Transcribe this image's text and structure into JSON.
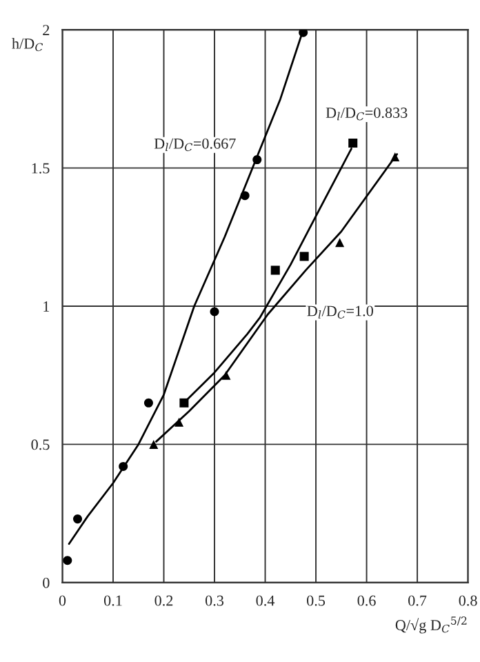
{
  "chart_data": {
    "type": "scatter",
    "xlabel": "Q/√g D$_{C}$$^{5/2}$",
    "ylabel": "h/D$_{C}$",
    "xlim": [
      0,
      0.8
    ],
    "ylim": [
      0,
      2
    ],
    "xticks": [
      0,
      0.1,
      0.2,
      0.3,
      0.4,
      0.5,
      0.6,
      0.7,
      0.8
    ],
    "yticks": [
      0,
      0.5,
      1,
      1.5,
      2
    ],
    "grid": true,
    "legend": false,
    "series": [
      {
        "marker": "circle",
        "color": "#000000",
        "x": [
          0.01,
          0.03,
          0.12,
          0.17,
          0.3,
          0.36,
          0.384,
          0.475
        ],
        "values": [
          0.08,
          0.23,
          0.42,
          0.65,
          0.98,
          1.4,
          1.53,
          1.99
        ]
      },
      {
        "marker": "square",
        "color": "#000000",
        "x": [
          0.24,
          0.42,
          0.477,
          0.573
        ],
        "values": [
          0.65,
          1.13,
          1.18,
          1.59
        ]
      },
      {
        "marker": "triangle",
        "color": "#000000",
        "x": [
          0.18,
          0.23,
          0.323,
          0.547,
          0.656
        ],
        "values": [
          0.5,
          0.58,
          0.75,
          1.23,
          1.54
        ]
      },
      {
        "type": "line",
        "name": "D$_{l}$/D$_{C}$=0.667",
        "color": "#000000",
        "x": [
          0.013,
          0.05,
          0.1,
          0.15,
          0.2,
          0.26,
          0.32,
          0.375,
          0.43,
          0.475
        ],
        "values": [
          0.14,
          0.24,
          0.36,
          0.5,
          0.68,
          1.0,
          1.25,
          1.5,
          1.75,
          2.0
        ]
      },
      {
        "type": "line",
        "name": "D$_{l}$/D$_{C}$=0.833",
        "color": "#000000",
        "x": [
          0.245,
          0.3,
          0.365,
          0.39,
          0.45,
          0.507,
          0.57
        ],
        "values": [
          0.66,
          0.76,
          0.9,
          0.96,
          1.15,
          1.35,
          1.57
        ]
      },
      {
        "type": "line",
        "name": "D$_{l}$/D$_{C}$=1.0",
        "color": "#000000",
        "x": [
          0.185,
          0.25,
          0.32,
          0.405,
          0.48,
          0.55,
          0.66
        ],
        "values": [
          0.51,
          0.62,
          0.75,
          0.97,
          1.13,
          1.27,
          1.55
        ]
      }
    ]
  }
}
